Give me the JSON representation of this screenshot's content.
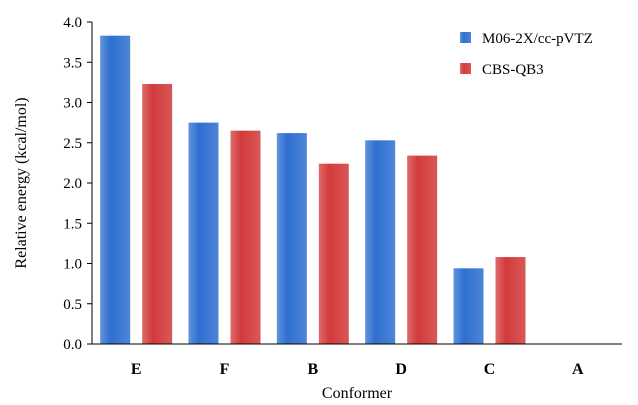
{
  "chart_data": {
    "type": "bar",
    "title": "",
    "xlabel": "Conformer",
    "ylabel": "Relative energy (kcal/mol)",
    "ylim": [
      0,
      4.0
    ],
    "yticks": [
      "0.0",
      "0.5",
      "1.0",
      "1.5",
      "2.0",
      "2.5",
      "3.0",
      "3.5",
      "4.0"
    ],
    "categories": [
      "E",
      "F",
      "B",
      "D",
      "C",
      "A"
    ],
    "series": [
      {
        "name": "M06-2X/cc-pVTZ",
        "color": "#2e6fd1",
        "values": [
          3.83,
          2.75,
          2.62,
          2.53,
          0.94,
          0.0
        ]
      },
      {
        "name": "CBS-QB3",
        "color": "#d33a3a",
        "values": [
          3.23,
          2.65,
          2.24,
          2.34,
          1.08,
          0.0
        ]
      }
    ],
    "grid": false,
    "legend_position": "top-right"
  }
}
